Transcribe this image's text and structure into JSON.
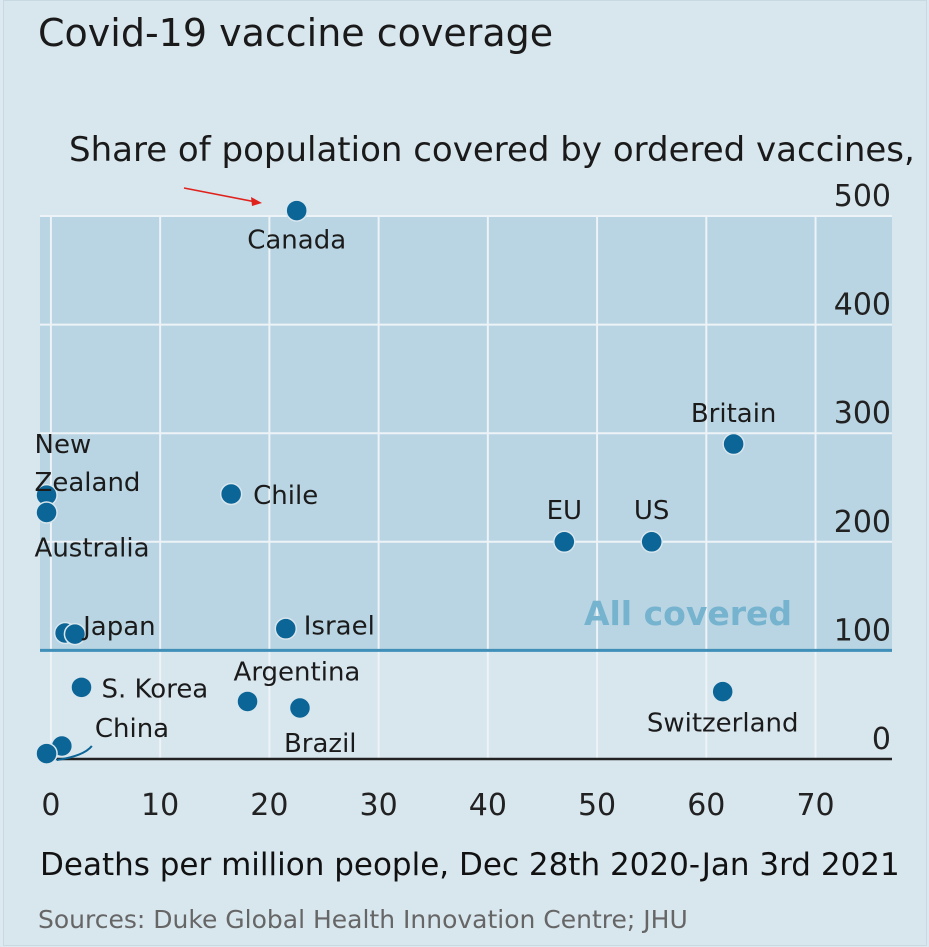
{
  "chart_data": {
    "type": "scatter",
    "title": "Covid-19 vaccine coverage",
    "ylabel": "Share of population covered by ordered vaccines, %",
    "xlabel": "Deaths per million people, Dec 28th 2020-Jan 3rd 2021",
    "source": "Sources: Duke Global Health Innovation Centre; JHU",
    "xlim": [
      -1,
      77
    ],
    "ylim": [
      0,
      500
    ],
    "xticks": [
      0,
      10,
      20,
      30,
      40,
      50,
      60,
      70
    ],
    "yticks": [
      0,
      100,
      200,
      300,
      400,
      500
    ],
    "grid": true,
    "threshold": {
      "value": 100,
      "label": "All covered"
    },
    "points": [
      {
        "label": "Canada",
        "x": 22.5,
        "y": 505
      },
      {
        "label": "Britain",
        "x": 62.5,
        "y": 290
      },
      {
        "label": "New Zealand",
        "x": -0.4,
        "y": 243
      },
      {
        "label": "Australia",
        "x": -0.4,
        "y": 227
      },
      {
        "label": "Chile",
        "x": 16.5,
        "y": 244
      },
      {
        "label": "EU",
        "x": 47,
        "y": 200
      },
      {
        "label": "US",
        "x": 55,
        "y": 200
      },
      {
        "label": "Japan",
        "x": 1.3,
        "y": 116
      },
      {
        "label": "",
        "x": 2.2,
        "y": 115
      },
      {
        "label": "Israel",
        "x": 21.5,
        "y": 120
      },
      {
        "label": "S. Korea",
        "x": 2.8,
        "y": 66
      },
      {
        "label": "Argentina",
        "x": 18,
        "y": 53
      },
      {
        "label": "Brazil",
        "x": 22.8,
        "y": 47
      },
      {
        "label": "Switzerland",
        "x": 61.5,
        "y": 62
      },
      {
        "label": "China",
        "x": 1.0,
        "y": 12
      },
      {
        "label": "",
        "x": -0.4,
        "y": 5
      }
    ]
  }
}
